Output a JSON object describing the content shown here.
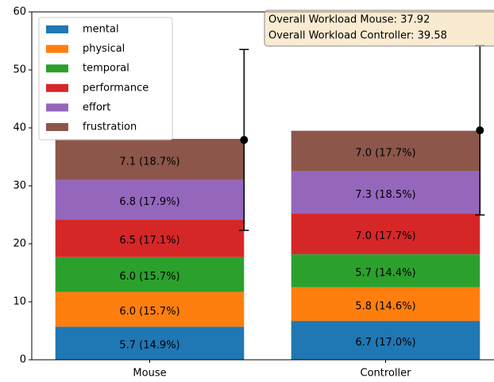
{
  "chart_data": {
    "type": "bar",
    "stacked": true,
    "categories": [
      "Mouse",
      "Controller"
    ],
    "series": [
      {
        "name": "mental",
        "color": "#1f77b4",
        "values": [
          5.7,
          6.7
        ],
        "value_labels": [
          "5.7 (14.9%)",
          "6.7 (17.0%)"
        ]
      },
      {
        "name": "physical",
        "color": "#ff7f0e",
        "values": [
          6.0,
          5.8
        ],
        "value_labels": [
          "6.0 (15.7%)",
          "5.8 (14.6%)"
        ]
      },
      {
        "name": "temporal",
        "color": "#2ca02c",
        "values": [
          6.0,
          5.7
        ],
        "value_labels": [
          "6.0 (15.7%)",
          "5.7 (14.4%)"
        ]
      },
      {
        "name": "performance",
        "color": "#d62728",
        "values": [
          6.5,
          7.0
        ],
        "value_labels": [
          "6.5 (17.1%)",
          "7.0 (17.7%)"
        ]
      },
      {
        "name": "effort",
        "color": "#9467bd",
        "values": [
          6.8,
          7.3
        ],
        "value_labels": [
          "6.8 (17.9%)",
          "7.3 (18.5%)"
        ]
      },
      {
        "name": "frustration",
        "color": "#8c564b",
        "values": [
          7.1,
          7.0
        ],
        "value_labels": [
          "7.1 (18.7%)",
          "7.0 (17.7%)"
        ]
      }
    ],
    "error_bars": {
      "values": [
        37.92,
        39.58
      ],
      "errors": [
        15.6,
        14.6
      ],
      "color": "#000000"
    },
    "annotation": [
      "Overall Workload Mouse: 37.92",
      "Overall Workload Controller: 39.58"
    ],
    "ylim": [
      0,
      60
    ],
    "yticks": [
      0,
      10,
      20,
      30,
      40,
      50,
      60
    ],
    "legend": "upper left"
  }
}
